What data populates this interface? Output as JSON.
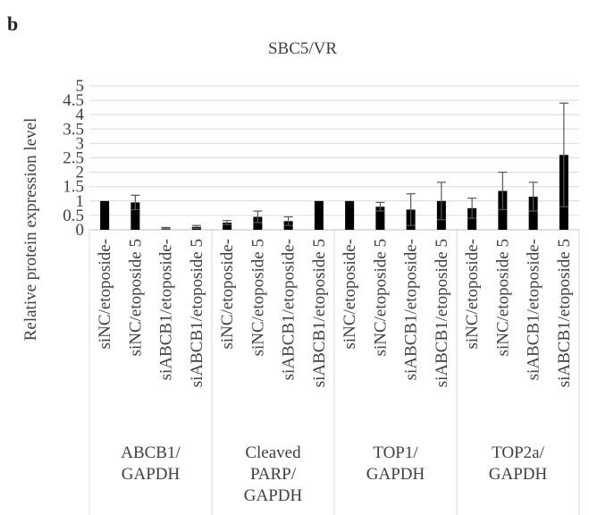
{
  "panel_label": "b",
  "chart_data": {
    "type": "bar",
    "title": "SBC5/VR",
    "xlabel": "",
    "ylabel": "Relative protein expression level",
    "ylim": [
      0,
      5
    ],
    "yticks": [
      "0",
      "0.5",
      "1",
      "1.5",
      "2",
      "2.5",
      "3",
      "3.5",
      "4",
      "4.5",
      "5"
    ],
    "grid": true,
    "bar_color": "#000000",
    "groups": [
      {
        "label_lines": [
          "ABCB1/",
          "GAPDH"
        ],
        "bars": [
          {
            "category": "siNC/etoposide-",
            "value": 1.0,
            "error": 0.0
          },
          {
            "category": "siNC/etoposide 5",
            "value": 0.95,
            "error": 0.25
          },
          {
            "category": "siABCB1/etoposide-",
            "value": 0.05,
            "error": 0.03
          },
          {
            "category": "siABCB1/etoposide 5",
            "value": 0.1,
            "error": 0.05
          }
        ]
      },
      {
        "label_lines": [
          "Cleaved",
          "PARP/",
          "GAPDH"
        ],
        "bars": [
          {
            "category": "siNC/etoposide-",
            "value": 0.25,
            "error": 0.07
          },
          {
            "category": "siNC/etoposide 5",
            "value": 0.45,
            "error": 0.2
          },
          {
            "category": "siABCB1/etoposide-",
            "value": 0.3,
            "error": 0.15
          },
          {
            "category": "siABCB1/etoposide 5",
            "value": 1.0,
            "error": 0.0
          }
        ]
      },
      {
        "label_lines": [
          "TOP1/",
          "GAPDH"
        ],
        "bars": [
          {
            "category": "siNC/etoposide-",
            "value": 1.0,
            "error": 0.0
          },
          {
            "category": "siNC/etoposide 5",
            "value": 0.8,
            "error": 0.15
          },
          {
            "category": "siABCB1/etoposide-",
            "value": 0.7,
            "error": 0.55
          },
          {
            "category": "siABCB1/etoposide 5",
            "value": 1.0,
            "error": 0.65
          }
        ]
      },
      {
        "label_lines": [
          "TOP2a/",
          "GAPDH"
        ],
        "bars": [
          {
            "category": "siNC/etoposide-",
            "value": 0.75,
            "error": 0.35
          },
          {
            "category": "siNC/etoposide 5",
            "value": 1.35,
            "error": 0.65
          },
          {
            "category": "siABCB1/etoposide-",
            "value": 1.15,
            "error": 0.5
          },
          {
            "category": "siABCB1/etoposide 5",
            "value": 2.6,
            "error": 1.8
          }
        ]
      }
    ]
  }
}
